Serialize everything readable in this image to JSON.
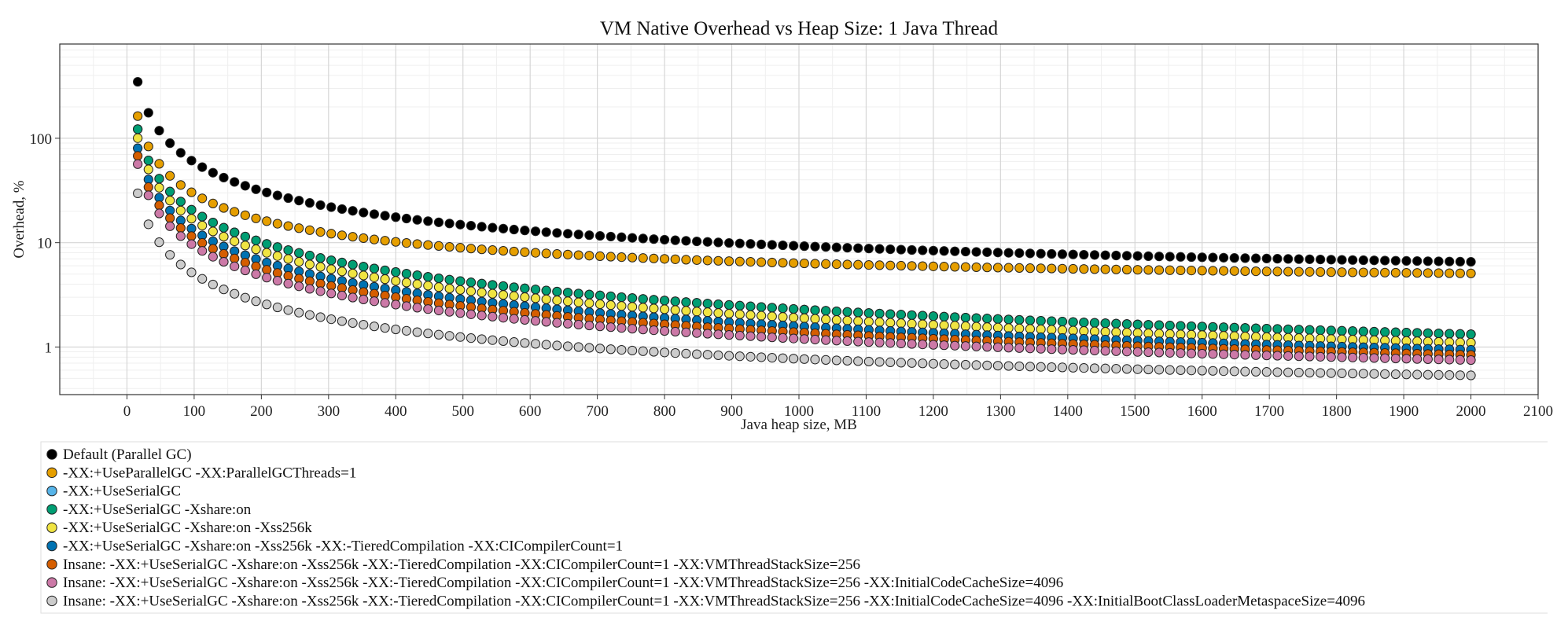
{
  "chart_data": {
    "type": "scatter",
    "title": "VM Native Overhead vs Heap Size: 1 Java Thread",
    "xlabel": "Java heap size, MB",
    "ylabel": "Overhead, %",
    "xlim": [
      -100,
      2100
    ],
    "ylim": [
      0.35,
      800
    ],
    "yscale": "log",
    "x_ticks": [
      0,
      100,
      200,
      300,
      400,
      500,
      600,
      700,
      800,
      900,
      1000,
      1100,
      1200,
      1300,
      1400,
      1500,
      1600,
      1700,
      1800,
      1900,
      2000,
      2100
    ],
    "x_tick_labels": [
      "0",
      "100",
      "200",
      "300",
      "400",
      "500",
      "600",
      "700",
      "800",
      "900",
      "1000",
      "1100",
      "1200",
      "1300",
      "1400",
      "1500",
      "1600",
      "1700",
      "1800",
      "1900",
      "2000",
      "2100"
    ],
    "y_ticks": [
      1,
      10,
      100
    ],
    "y_tick_labels": [
      "1",
      "10",
      "100"
    ],
    "grid": true,
    "legend_position": "bottom-left",
    "x_start": 16,
    "x_step": 16,
    "x_end": 2000,
    "series": [
      {
        "name": "Default (Parallel GC)",
        "color": "#000000",
        "fixed_mb": 55,
        "proportional_pct": 3.8
      },
      {
        "name": "-XX:+UseParallelGC -XX:ParallelGCThreads=1",
        "color": "#E69F00",
        "fixed_mb": 25.5,
        "proportional_pct": 3.8
      },
      {
        "name": "-XX:+UseSerialGC",
        "color": "#56B4E9",
        "fixed_mb": 19.5,
        "proportional_pct": 0.35
      },
      {
        "name": "-XX:+UseSerialGC -Xshare:on",
        "color": "#009E73",
        "fixed_mb": 19.5,
        "proportional_pct": 0.35
      },
      {
        "name": "-XX:+UseSerialGC -Xshare:on -Xss256k",
        "color": "#F0E442",
        "fixed_mb": 16,
        "proportional_pct": 0.3
      },
      {
        "name": "-XX:+UseSerialGC -Xshare:on -Xss256k -XX:-TieredCompilation -XX:CICompilerCount=1",
        "color": "#0072B2",
        "fixed_mb": 12.8,
        "proportional_pct": 0.3
      },
      {
        "name": "Insane:  -XX:+UseSerialGC -Xshare:on -Xss256k -XX:-TieredCompilation -XX:CICompilerCount=1 -XX:VMThreadStackSize=256",
        "color": "#D55E00",
        "fixed_mb": 10.8,
        "proportional_pct": 0.3
      },
      {
        "name": "Insane:  -XX:+UseSerialGC -Xshare:on -Xss256k -XX:-TieredCompilation -XX:CICompilerCount=1 -XX:VMThreadStackSize=256 -XX:InitialCodeCacheSize=4096",
        "color": "#CC79A7",
        "fixed_mb": 9,
        "proportional_pct": 0.3
      },
      {
        "name": "Insane:  -XX:+UseSerialGC -Xshare:on -Xss256k -XX:-TieredCompilation -XX:CICompilerCount=1 -XX:VMThreadStackSize=256 -XX:InitialCodeCacheSize=4096 -XX:InitialBootClassLoaderMetaspaceSize=4096",
        "color": "#CCCCCC",
        "fixed_mb": 4.7,
        "proportional_pct": 0.3
      }
    ]
  }
}
